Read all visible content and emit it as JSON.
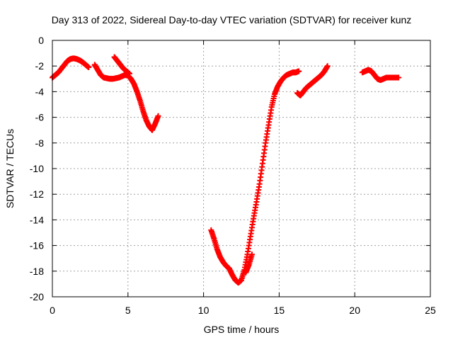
{
  "chart_data": {
    "type": "scatter",
    "title": "Day 313 of 2022, Sidereal Day-to-day VTEC variation (SDTVAR) for receiver kunz",
    "xlabel": "GPS time / hours",
    "ylabel": "SDTVAR / TECUs",
    "xlim": [
      0,
      25
    ],
    "ylim": [
      -20,
      0
    ],
    "xticks": [
      0,
      5,
      10,
      15,
      20,
      25
    ],
    "yticks": [
      0,
      -2,
      -4,
      -6,
      -8,
      -10,
      -12,
      -14,
      -16,
      -18,
      -20
    ],
    "grid": true,
    "legend": "none",
    "marker": "plus",
    "color": "#ff0000",
    "segments": [
      {
        "x": [
          0.0,
          0.2,
          0.4,
          0.6,
          0.8,
          1.0,
          1.2,
          1.4,
          1.6,
          1.8,
          2.0,
          2.2,
          2.4
        ],
        "y": [
          -2.9,
          -2.7,
          -2.5,
          -2.2,
          -1.9,
          -1.6,
          -1.45,
          -1.4,
          -1.45,
          -1.55,
          -1.7,
          -1.9,
          -2.1
        ]
      },
      {
        "x": [
          2.8,
          3.0,
          3.2,
          3.4,
          3.6,
          3.8,
          4.0,
          4.2,
          4.4,
          4.6,
          4.8,
          5.0,
          5.2,
          5.4,
          5.6,
          5.8,
          6.0,
          6.2,
          6.4,
          6.6,
          6.8,
          7.0
        ],
        "y": [
          -1.9,
          -2.3,
          -2.7,
          -2.9,
          -2.95,
          -3.0,
          -3.0,
          -2.95,
          -2.9,
          -2.8,
          -2.7,
          -2.75,
          -3.0,
          -3.4,
          -4.0,
          -4.7,
          -5.5,
          -6.2,
          -6.7,
          -7.0,
          -6.5,
          -5.9
        ]
      },
      {
        "x": [
          4.1,
          4.3,
          4.5,
          4.7,
          4.9,
          5.1
        ],
        "y": [
          -1.3,
          -1.6,
          -1.9,
          -2.2,
          -2.4,
          -2.6
        ]
      },
      {
        "x": [
          10.5,
          10.7,
          10.9,
          11.1,
          11.3,
          11.5,
          11.7,
          11.9,
          12.1,
          12.3,
          12.5,
          12.7,
          12.9,
          13.1,
          13.3,
          13.5,
          13.7,
          13.9,
          14.1,
          14.3,
          14.5,
          14.7,
          14.9,
          15.1,
          15.3,
          15.5,
          15.7,
          15.9,
          16.1,
          16.3
        ],
        "y": [
          -14.8,
          -15.5,
          -16.3,
          -16.9,
          -17.3,
          -17.6,
          -17.8,
          -18.3,
          -18.7,
          -18.9,
          -18.7,
          -17.9,
          -16.7,
          -15.3,
          -13.9,
          -12.6,
          -11.2,
          -9.6,
          -8.0,
          -6.6,
          -5.2,
          -4.2,
          -3.6,
          -3.2,
          -2.9,
          -2.7,
          -2.6,
          -2.5,
          -2.5,
          -2.4
        ]
      },
      {
        "x": [
          12.8,
          13.0,
          13.2
        ],
        "y": [
          -18.1,
          -17.5,
          -16.7
        ]
      },
      {
        "x": [
          16.2,
          16.4,
          16.6,
          16.8,
          17.0,
          17.2,
          17.4,
          17.6,
          17.8,
          18.0,
          18.2
        ],
        "y": [
          -4.1,
          -4.3,
          -4.0,
          -3.7,
          -3.5,
          -3.3,
          -3.1,
          -2.9,
          -2.7,
          -2.4,
          -2.0
        ]
      },
      {
        "x": [
          20.5,
          20.7,
          20.9,
          21.1,
          21.3,
          21.5,
          21.7,
          21.9,
          22.1,
          22.3,
          22.5,
          22.7,
          22.9
        ],
        "y": [
          -2.5,
          -2.4,
          -2.3,
          -2.4,
          -2.7,
          -3.0,
          -3.1,
          -3.0,
          -2.9,
          -2.9,
          -2.9,
          -2.9,
          -2.9
        ]
      }
    ]
  }
}
